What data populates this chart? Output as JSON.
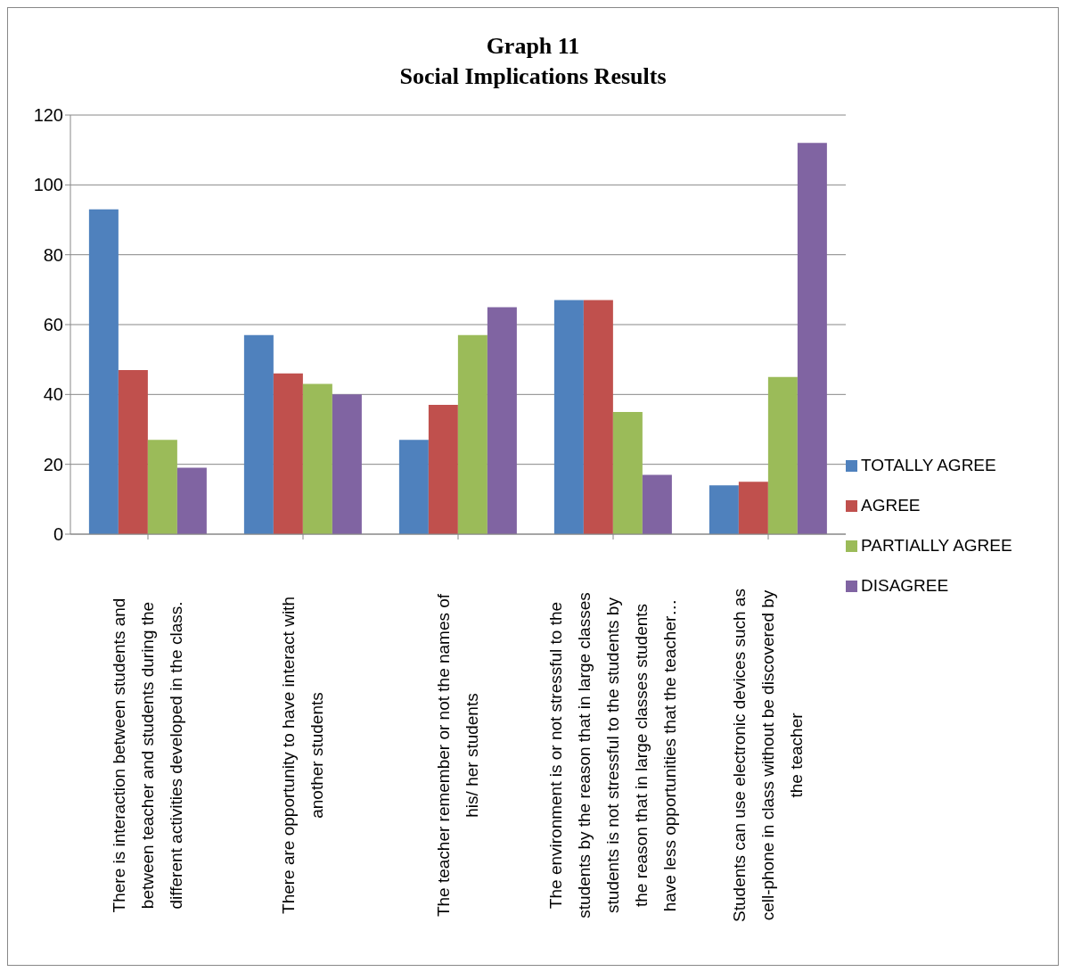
{
  "chart_data": {
    "type": "bar",
    "title": "Graph 11\nSocial Implications Results",
    "categories": [
      "There is interaction between students and between teacher and students during the different activities developed in the class.",
      "There are opportunity to have interact with another students",
      "The teacher remember or not the names of his/ her students",
      "The environment is or not stressful to the students by the reason that in large classes students is not stressful to the students by the reason that in large classes students have less opportunities that the teacher…",
      "Students can use electronic devices such as cell-phone in class without be discovered by the teacher"
    ],
    "series": [
      {
        "name": "TOTALLY AGREE",
        "color": "#4f81bd",
        "values": [
          93,
          57,
          27,
          67,
          14
        ]
      },
      {
        "name": "AGREE",
        "color": "#c0504d",
        "values": [
          47,
          46,
          37,
          67,
          15
        ]
      },
      {
        "name": "PARTIALLY AGREE",
        "color": "#9bbb59",
        "values": [
          27,
          43,
          57,
          35,
          45
        ]
      },
      {
        "name": "DISAGREE",
        "color": "#8064a2",
        "values": [
          19,
          40,
          65,
          17,
          112
        ]
      }
    ],
    "ylim": [
      0,
      120
    ],
    "yticks": [
      0,
      20,
      40,
      60,
      80,
      100,
      120
    ],
    "grid": "y",
    "legend": "right"
  }
}
